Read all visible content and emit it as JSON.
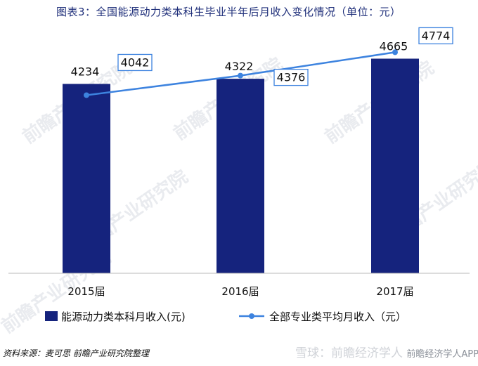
{
  "title": "图表3：全国能源动力类本科生毕业半年后月收入变化情况（单位：元）",
  "source": "资料来源：麦可思  前瞻产业研究院整理",
  "watermark": "前瞻产业研究院",
  "corner_watermark": "雪球：前瞻经济学人",
  "corner_watermark_small": "前瞻经济学人APP",
  "colors": {
    "bar": "#15237d",
    "line": "#3d83df",
    "title": "#1f2f7a"
  },
  "chart_data": {
    "type": "bar",
    "categories": [
      "2015届",
      "2016届",
      "2017届"
    ],
    "series": [
      {
        "name": "能源动力类本科月收入(元)",
        "type": "bar",
        "values": [
          4234,
          4322,
          4665
        ]
      },
      {
        "name": "全部专业类平均月收入（元）",
        "type": "line",
        "values": [
          4042,
          4376,
          4774
        ]
      }
    ],
    "legend_position": "bottom",
    "grid": false
  }
}
